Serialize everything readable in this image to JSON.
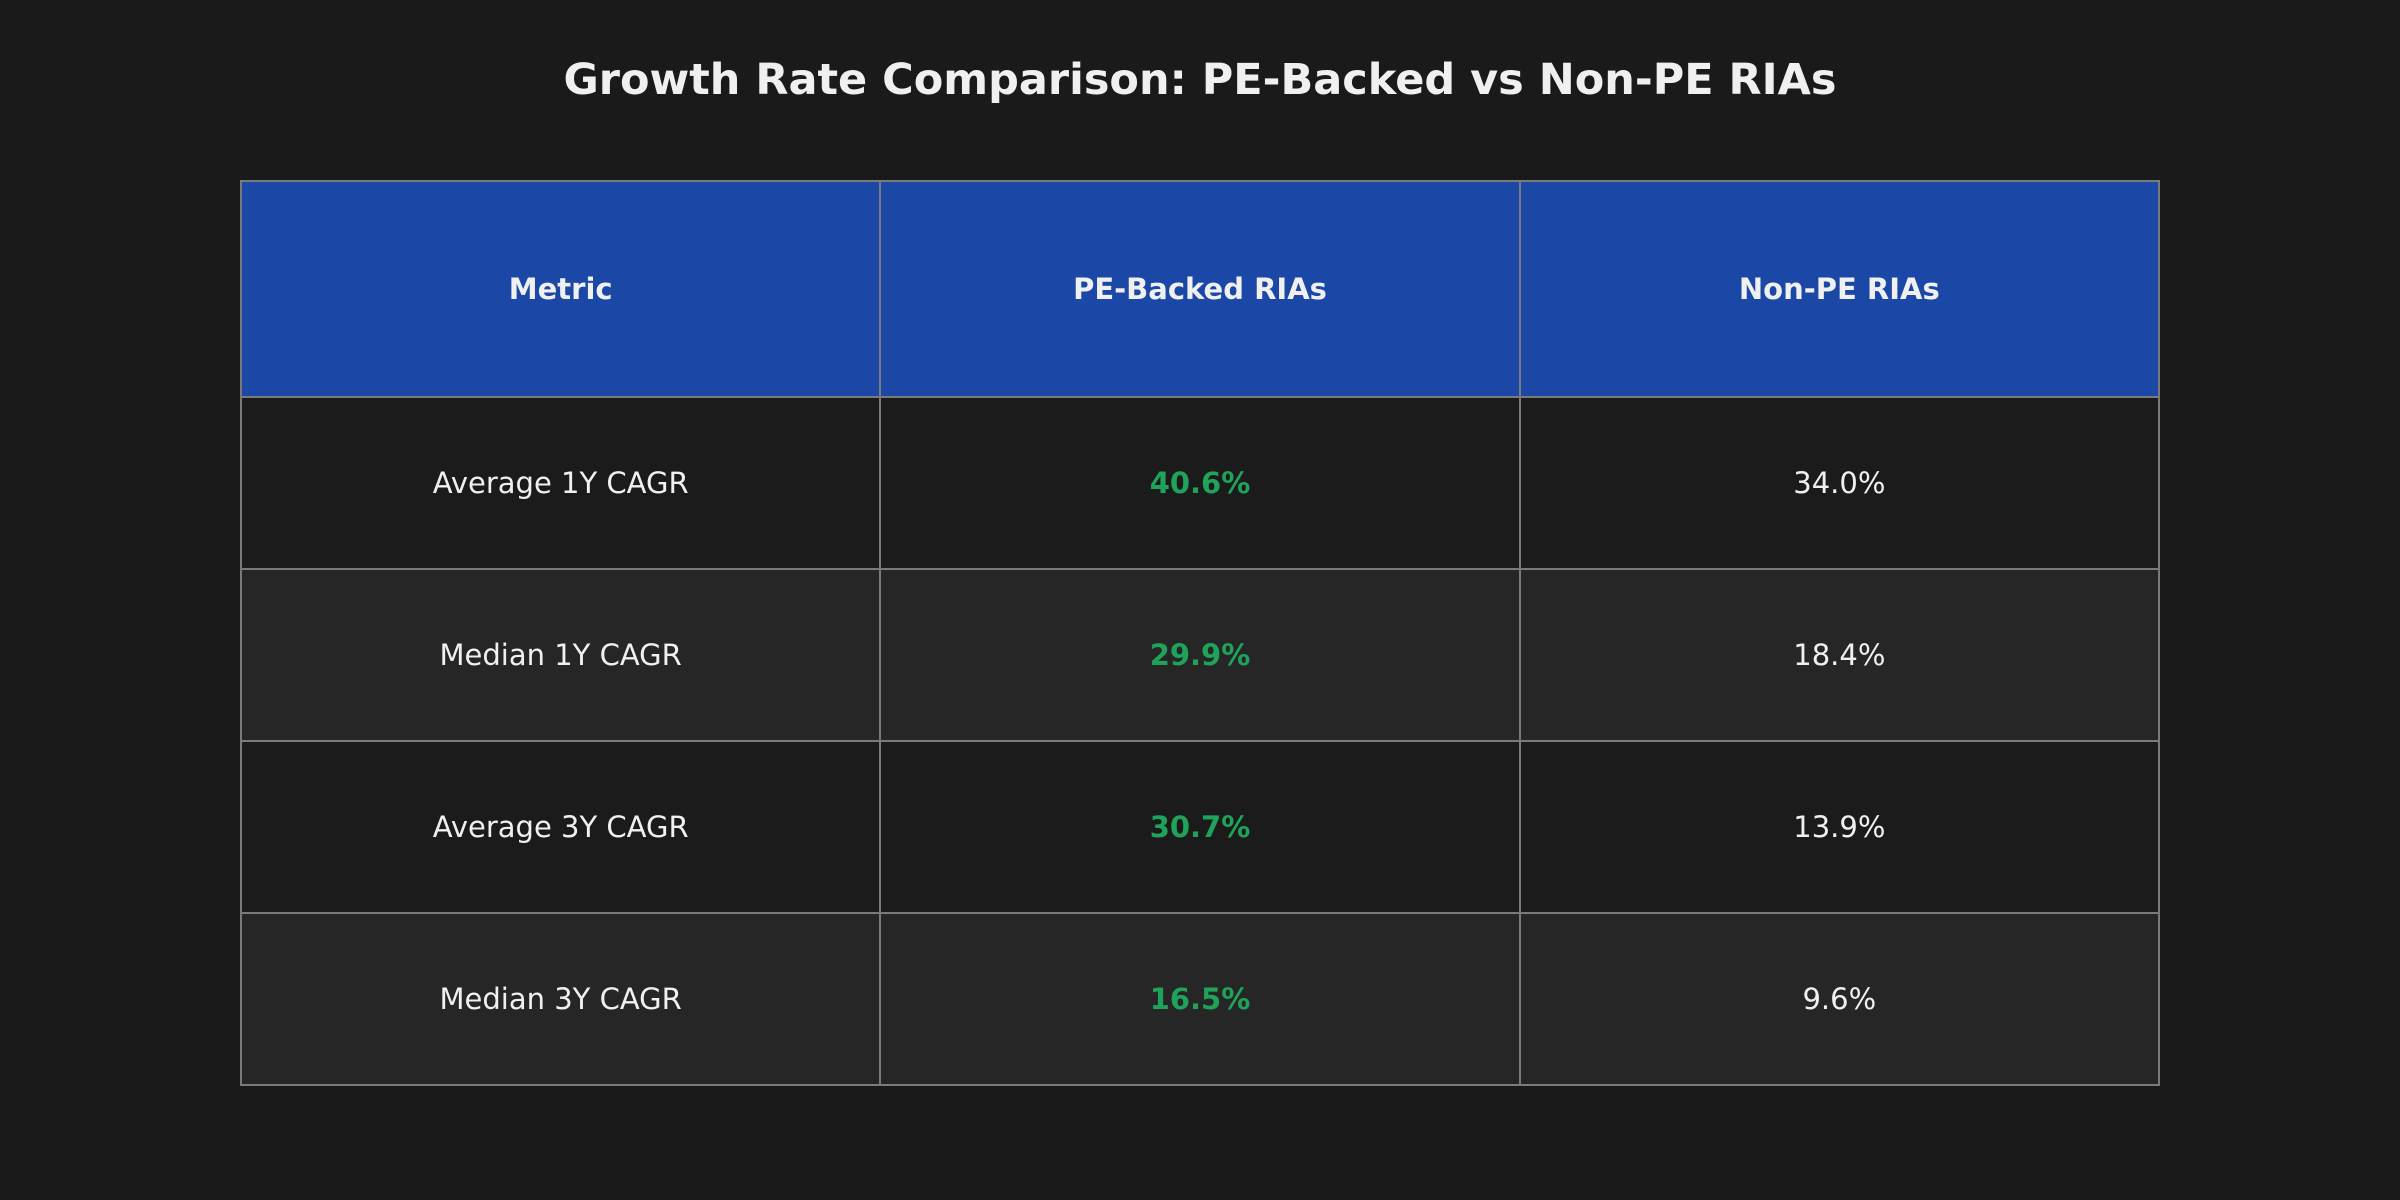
{
  "chart_data": {
    "type": "table",
    "title": "Growth Rate Comparison: PE-Backed vs Non-PE RIAs",
    "columns": [
      "Metric",
      "PE-Backed RIAs",
      "Non-PE RIAs"
    ],
    "rows": [
      {
        "metric": "Average 1Y CAGR",
        "pe_backed": "40.6%",
        "non_pe": "34.0%"
      },
      {
        "metric": "Median 1Y CAGR",
        "pe_backed": "29.9%",
        "non_pe": "18.4%"
      },
      {
        "metric": "Average 3Y CAGR",
        "pe_backed": "30.7%",
        "non_pe": "13.9%"
      },
      {
        "metric": "Median 3Y CAGR",
        "pe_backed": "16.5%",
        "non_pe": "9.6%"
      }
    ],
    "colors": {
      "background": "#1a1a1a",
      "header_background": "#1b47a6",
      "highlight_text": "#1fa25a",
      "row_dark": "#1b1b1b",
      "row_light": "#262626",
      "border": "#7a7a7a"
    }
  }
}
